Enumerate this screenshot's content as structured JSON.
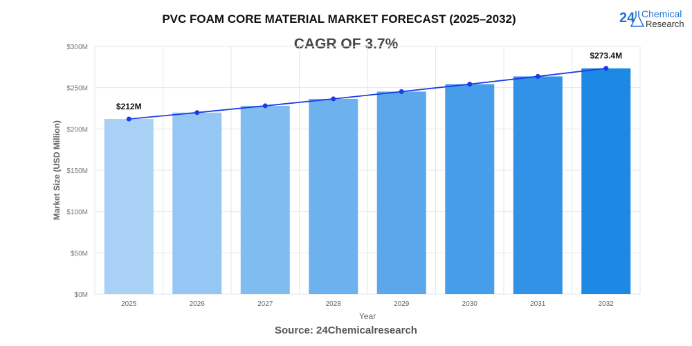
{
  "logo": {
    "number": "24",
    "line1": "Chemical",
    "line2": "Research"
  },
  "source": "Source: 24Chemicalresearch",
  "chart_data": {
    "type": "bar",
    "title": "PVC FOAM CORE MATERIAL MARKET FORECAST (2025–2032)",
    "subtitle": "CAGR OF 3.7%",
    "xlabel": "Year",
    "ylabel": "Market Size (USD Million)",
    "categories": [
      "2025",
      "2026",
      "2027",
      "2028",
      "2029",
      "2030",
      "2031",
      "2032"
    ],
    "values": [
      212,
      219.8,
      228,
      236.4,
      245.2,
      254.2,
      263.6,
      273.4
    ],
    "trend_line": true,
    "data_labels": [
      {
        "index": 0,
        "text": "$212M"
      },
      {
        "index": 7,
        "text": "$273.4M"
      }
    ],
    "ylim": [
      0,
      300
    ],
    "yticks": [
      0,
      50,
      100,
      150,
      200,
      250,
      300
    ],
    "ytick_labels": [
      "$0M",
      "$50M",
      "$100M",
      "$150M",
      "$200M",
      "$250M",
      "$300M"
    ],
    "grid": true,
    "colors": {
      "bar_start": "#a9d1f6",
      "bar_end": "#1e88e5",
      "line": "#1a3be8"
    }
  }
}
